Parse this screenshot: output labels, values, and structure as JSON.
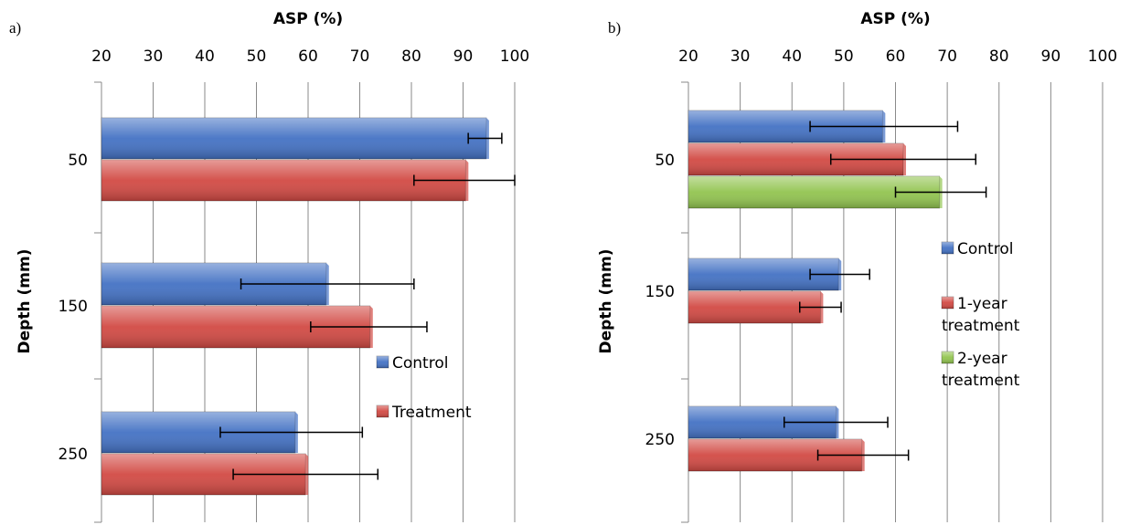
{
  "colors": {
    "control": "#4472C4",
    "treatment": "#D24A44",
    "two_year": "#92C450"
  },
  "chart_data": [
    {
      "panel_label": "a)",
      "type": "bar",
      "orientation": "horizontal",
      "title": "",
      "xlabel": "ASP (%)",
      "ylabel": "Depth (mm)",
      "xlim": [
        20,
        100
      ],
      "xticks": [
        "20",
        "30",
        "40",
        "50",
        "60",
        "70",
        "80",
        "90",
        "100"
      ],
      "categories": [
        "50",
        "150",
        "250"
      ],
      "grid": true,
      "legend_position": "center-right",
      "series": [
        {
          "name": "Control",
          "color_key": "control",
          "values": [
            94.5,
            63.5,
            57.5
          ],
          "error_low": [
            91,
            47,
            43
          ],
          "error_high": [
            97.5,
            80.5,
            70.5
          ]
        },
        {
          "name": "Treatment",
          "color_key": "treatment",
          "values": [
            90.5,
            72,
            59.5
          ],
          "error_low": [
            80.5,
            60.5,
            45.5
          ],
          "error_high": [
            100,
            83,
            73.5
          ]
        }
      ]
    },
    {
      "panel_label": "b)",
      "type": "bar",
      "orientation": "horizontal",
      "title": "",
      "xlabel": "ASP (%)",
      "ylabel": "Depth (mm)",
      "xlim": [
        20,
        100
      ],
      "xticks": [
        "20",
        "30",
        "40",
        "50",
        "60",
        "70",
        "80",
        "90",
        "100"
      ],
      "categories": [
        "50",
        "150",
        "250"
      ],
      "grid": true,
      "legend_position": "center-right",
      "series": [
        {
          "name": "Control",
          "color_key": "control",
          "values": [
            57.5,
            49,
            48.5
          ],
          "error_low": [
            43.5,
            43.5,
            38.5
          ],
          "error_high": [
            72,
            55,
            58.5
          ]
        },
        {
          "name": "1-year treatment",
          "legend_lines": [
            "1-year",
            "treatment"
          ],
          "color_key": "treatment",
          "values": [
            61.5,
            45.5,
            53.5
          ],
          "error_low": [
            47.5,
            41.5,
            45
          ],
          "error_high": [
            75.5,
            49.5,
            62.5
          ]
        },
        {
          "name": "2-year treatment",
          "legend_lines": [
            "2-year",
            "treatment"
          ],
          "color_key": "two_year",
          "values": [
            68.5,
            null,
            null
          ],
          "error_low": [
            60,
            null,
            null
          ],
          "error_high": [
            77.5,
            null,
            null
          ]
        }
      ]
    }
  ]
}
